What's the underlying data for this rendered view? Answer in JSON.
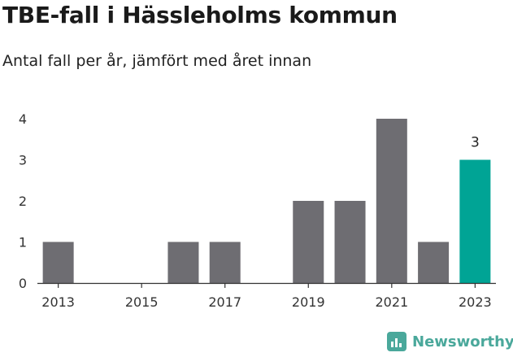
{
  "header": {
    "title": "TBE-fall i Hässleholms kommun",
    "subtitle": "Antal fall per år, jämfört med året innan"
  },
  "brand": {
    "name": "Newsworthy",
    "color": "#4aa89b"
  },
  "colors": {
    "bar": "#6e6d72",
    "highlight": "#00a495",
    "axis": "#333333",
    "text": "#333333"
  },
  "chart_data": {
    "type": "bar",
    "title": "TBE-fall i Hässleholms kommun",
    "subtitle": "Antal fall per år, jämfört med året innan",
    "xlabel": "",
    "ylabel": "",
    "categories": [
      "2013",
      "2014",
      "2015",
      "2016",
      "2017",
      "2018",
      "2019",
      "2020",
      "2021",
      "2022",
      "2023"
    ],
    "values": [
      1,
      0,
      0,
      1,
      1,
      0,
      2,
      2,
      4,
      1,
      3
    ],
    "highlight_index": 10,
    "data_labels": [
      {
        "index": 10,
        "text": "3"
      }
    ],
    "x_tick_labels": [
      "2013",
      "2015",
      "2017",
      "2019",
      "2021",
      "2023"
    ],
    "y_ticks": [
      "0",
      "1",
      "2",
      "3",
      "4"
    ],
    "ylim": [
      0,
      4
    ],
    "grid": false,
    "legend": "none"
  }
}
